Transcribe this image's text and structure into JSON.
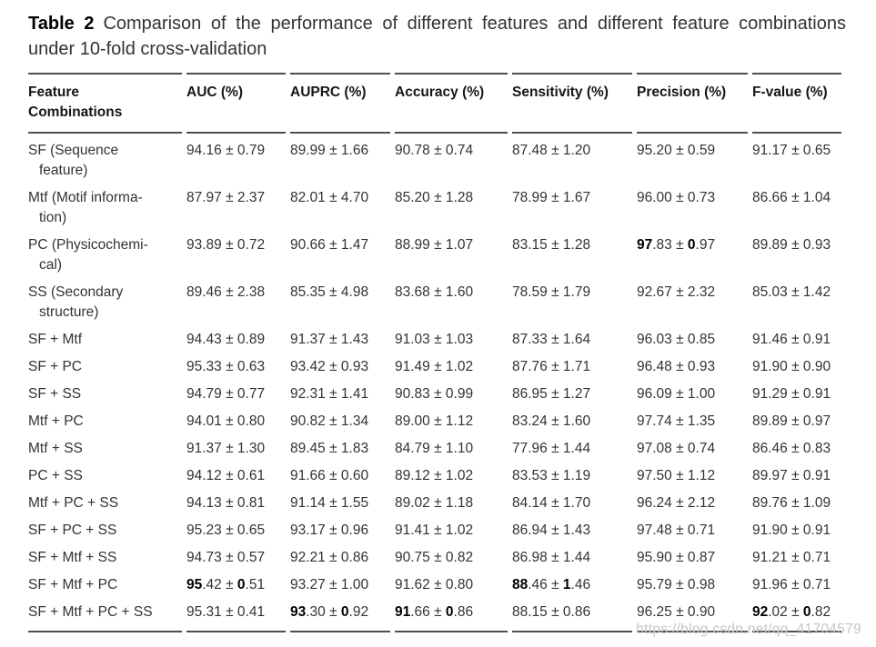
{
  "caption": {
    "label": "Table 2",
    "line1": "Comparison of the performance of different features and different feature combinations",
    "line2": "under 10-fold cross-validation"
  },
  "table": {
    "columns": [
      {
        "lines": [
          "Feature",
          "Combinations"
        ]
      },
      {
        "lines": [
          "AUC (%)"
        ]
      },
      {
        "lines": [
          "AUPRC (%)"
        ]
      },
      {
        "lines": [
          "Accuracy (%)"
        ]
      },
      {
        "lines": [
          "Sensitivity (%)"
        ]
      },
      {
        "lines": [
          "Precision (%)"
        ]
      },
      {
        "lines": [
          "F-value (%)"
        ]
      }
    ],
    "plus_minus_symbol": "±",
    "rows": [
      {
        "label_lines": [
          "SF (Sequence",
          "feature)"
        ],
        "cells": [
          {
            "m": "94.16",
            "s": "0.79"
          },
          {
            "m": "89.99",
            "s": "1.66"
          },
          {
            "m": "90.78",
            "s": "0.74"
          },
          {
            "m": "87.48",
            "s": "1.20"
          },
          {
            "m": "95.20",
            "s": "0.59"
          },
          {
            "m": "91.17",
            "s": "0.65"
          }
        ]
      },
      {
        "label_lines": [
          "Mtf (Motif informa-",
          "tion)"
        ],
        "cells": [
          {
            "m": "87.97",
            "s": "2.37"
          },
          {
            "m": "82.01",
            "s": "4.70"
          },
          {
            "m": "85.20",
            "s": "1.28"
          },
          {
            "m": "78.99",
            "s": "1.67"
          },
          {
            "m": "96.00",
            "s": "0.73"
          },
          {
            "m": "86.66",
            "s": "1.04"
          }
        ]
      },
      {
        "label_lines": [
          "PC (Physicochemi-",
          "cal)"
        ],
        "cells": [
          {
            "m": "93.89",
            "s": "0.72"
          },
          {
            "m": "90.66",
            "s": "1.47"
          },
          {
            "m": "88.99",
            "s": "1.07"
          },
          {
            "m": "83.15",
            "s": "1.28"
          },
          {
            "m": "97.83",
            "s": "0.97",
            "bold": true
          },
          {
            "m": "89.89",
            "s": "0.93"
          }
        ]
      },
      {
        "label_lines": [
          "SS (Secondary",
          "structure)"
        ],
        "cells": [
          {
            "m": "89.46",
            "s": "2.38"
          },
          {
            "m": "85.35",
            "s": "4.98"
          },
          {
            "m": "83.68",
            "s": "1.60"
          },
          {
            "m": "78.59",
            "s": "1.79"
          },
          {
            "m": "92.67",
            "s": "2.32"
          },
          {
            "m": "85.03",
            "s": "1.42"
          }
        ]
      },
      {
        "label_lines": [
          "SF + Mtf"
        ],
        "cells": [
          {
            "m": "94.43",
            "s": "0.89"
          },
          {
            "m": "91.37",
            "s": "1.43"
          },
          {
            "m": "91.03",
            "s": "1.03"
          },
          {
            "m": "87.33",
            "s": "1.64"
          },
          {
            "m": "96.03",
            "s": "0.85"
          },
          {
            "m": "91.46",
            "s": "0.91"
          }
        ]
      },
      {
        "label_lines": [
          "SF + PC"
        ],
        "cells": [
          {
            "m": "95.33",
            "s": "0.63"
          },
          {
            "m": "93.42",
            "s": "0.93"
          },
          {
            "m": "91.49",
            "s": "1.02"
          },
          {
            "m": "87.76",
            "s": "1.71"
          },
          {
            "m": "96.48",
            "s": "0.93"
          },
          {
            "m": "91.90",
            "s": "0.90"
          }
        ]
      },
      {
        "label_lines": [
          "SF + SS"
        ],
        "cells": [
          {
            "m": "94.79",
            "s": "0.77"
          },
          {
            "m": "92.31",
            "s": "1.41"
          },
          {
            "m": "90.83",
            "s": "0.99"
          },
          {
            "m": "86.95",
            "s": "1.27"
          },
          {
            "m": "96.09",
            "s": "1.00"
          },
          {
            "m": "91.29",
            "s": "0.91"
          }
        ]
      },
      {
        "label_lines": [
          "Mtf + PC"
        ],
        "cells": [
          {
            "m": "94.01",
            "s": "0.80"
          },
          {
            "m": "90.82",
            "s": "1.34"
          },
          {
            "m": "89.00",
            "s": "1.12"
          },
          {
            "m": "83.24",
            "s": "1.60"
          },
          {
            "m": "97.74",
            "s": "1.35"
          },
          {
            "m": "89.89",
            "s": "0.97"
          }
        ]
      },
      {
        "label_lines": [
          "Mtf + SS"
        ],
        "cells": [
          {
            "m": "91.37",
            "s": "1.30"
          },
          {
            "m": "89.45",
            "s": "1.83"
          },
          {
            "m": "84.79",
            "s": "1.10"
          },
          {
            "m": "77.96",
            "s": "1.44"
          },
          {
            "m": "97.08",
            "s": "0.74"
          },
          {
            "m": "86.46",
            "s": "0.83"
          }
        ]
      },
      {
        "label_lines": [
          "PC + SS"
        ],
        "cells": [
          {
            "m": "94.12",
            "s": "0.61"
          },
          {
            "m": "91.66",
            "s": "0.60"
          },
          {
            "m": "89.12",
            "s": "1.02"
          },
          {
            "m": "83.53",
            "s": "1.19"
          },
          {
            "m": "97.50",
            "s": "1.12"
          },
          {
            "m": "89.97",
            "s": "0.91"
          }
        ]
      },
      {
        "label_lines": [
          "Mtf + PC + SS"
        ],
        "cells": [
          {
            "m": "94.13",
            "s": "0.81"
          },
          {
            "m": "91.14",
            "s": "1.55"
          },
          {
            "m": "89.02",
            "s": "1.18"
          },
          {
            "m": "84.14",
            "s": "1.70"
          },
          {
            "m": "96.24",
            "s": "2.12"
          },
          {
            "m": "89.76",
            "s": "1.09"
          }
        ]
      },
      {
        "label_lines": [
          "SF + PC + SS"
        ],
        "cells": [
          {
            "m": "95.23",
            "s": "0.65"
          },
          {
            "m": "93.17",
            "s": "0.96"
          },
          {
            "m": "91.41",
            "s": "1.02"
          },
          {
            "m": "86.94",
            "s": "1.43"
          },
          {
            "m": "97.48",
            "s": "0.71"
          },
          {
            "m": "91.90",
            "s": "0.91"
          }
        ]
      },
      {
        "label_lines": [
          "SF + Mtf + SS"
        ],
        "cells": [
          {
            "m": "94.73",
            "s": "0.57"
          },
          {
            "m": "92.21",
            "s": "0.86"
          },
          {
            "m": "90.75",
            "s": "0.82"
          },
          {
            "m": "86.98",
            "s": "1.44"
          },
          {
            "m": "95.90",
            "s": "0.87"
          },
          {
            "m": "91.21",
            "s": "0.71"
          }
        ]
      },
      {
        "label_lines": [
          "SF + Mtf + PC"
        ],
        "cells": [
          {
            "m": "95.42",
            "s": "0.51",
            "bold": true
          },
          {
            "m": "93.27",
            "s": "1.00"
          },
          {
            "m": "91.62",
            "s": "0.80"
          },
          {
            "m": "88.46",
            "s": "1.46",
            "bold": true
          },
          {
            "m": "95.79",
            "s": "0.98"
          },
          {
            "m": "91.96",
            "s": "0.71"
          }
        ]
      },
      {
        "label_lines": [
          "SF + Mtf + PC + SS"
        ],
        "cells": [
          {
            "m": "95.31",
            "s": "0.41"
          },
          {
            "m": "93.30",
            "s": "0.92",
            "bold": true
          },
          {
            "m": "91.66",
            "s": "0.86",
            "bold": true
          },
          {
            "m": "88.15",
            "s": "0.86"
          },
          {
            "m": "96.25",
            "s": "0.90"
          },
          {
            "m": "92.02",
            "s": "0.82",
            "bold": true
          }
        ]
      }
    ]
  },
  "watermark": {
    "text": "https://blog.csdn.net/qq_41704579"
  },
  "colors": {
    "rule": "#4f4f4f",
    "body_text": "#333333",
    "bold_text": "#000000",
    "watermark": "#c6c6c6",
    "background": "#ffffff"
  }
}
